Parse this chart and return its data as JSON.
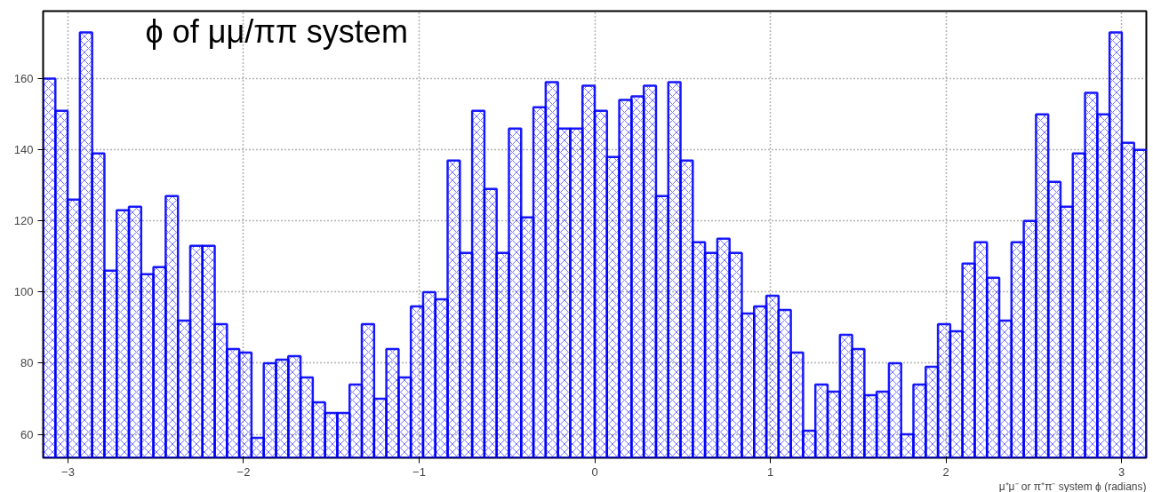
{
  "chart_data": {
    "type": "histogram",
    "title": "ϕ of μμ/ππ system",
    "xlabel": "μ⁺μ⁻ or π⁺π⁻ system ϕ (radians)",
    "color": "#0000ff",
    "bins": [
      -3.1416,
      -3.0718,
      -3.002,
      -2.9322,
      -2.8623,
      -2.7925,
      -2.7227,
      -2.6529,
      -2.5831,
      -2.5133,
      -2.4435,
      -2.3736,
      -2.3038,
      -2.234,
      -2.1642,
      -2.0944,
      -2.0246,
      -1.9548,
      -1.885,
      -1.8151,
      -1.7453,
      -1.6755,
      -1.6057,
      -1.5359,
      -1.4661,
      -1.3963,
      -1.3265,
      -1.2566,
      -1.1868,
      -1.117,
      -1.0472,
      -0.9774,
      -0.9076,
      -0.8378,
      -0.7679,
      -0.6981,
      -0.6283,
      -0.5585,
      -0.4887,
      -0.4189,
      -0.3491,
      -0.2793,
      -0.2094,
      -0.1396,
      -0.0698,
      0,
      0.0698,
      0.1396,
      0.2094,
      0.2793,
      0.3491,
      0.4189,
      0.4887,
      0.5585,
      0.6283,
      0.6981,
      0.7679,
      0.8378,
      0.9076,
      0.9774,
      1.0472,
      1.117,
      1.1868,
      1.2566,
      1.3265,
      1.3963,
      1.4661,
      1.5359,
      1.6057,
      1.6755,
      1.7453,
      1.8151,
      1.885,
      1.9548,
      2.0246,
      2.0944,
      2.1642,
      2.234,
      2.3038,
      2.3736,
      2.4435,
      2.5133,
      2.5831,
      2.6529,
      2.7227,
      2.7925,
      2.8623,
      2.9322,
      3.002,
      3.0718,
      3.1416
    ],
    "values": [
      160,
      151,
      126,
      173,
      139,
      106,
      123,
      124,
      105,
      107,
      127,
      92,
      113,
      113,
      91,
      84,
      83,
      59,
      80,
      81,
      82,
      76,
      69,
      66,
      66,
      74,
      91,
      70,
      84,
      76,
      96,
      100,
      98,
      137,
      111,
      151,
      129,
      111,
      146,
      121,
      152,
      159,
      146,
      146,
      158,
      151,
      138,
      154,
      155,
      158,
      127,
      159,
      137,
      114,
      111,
      115,
      111,
      94,
      96,
      99,
      95,
      83,
      61,
      74,
      72,
      88,
      84,
      71,
      72,
      80,
      60,
      74,
      79,
      91,
      89,
      108,
      114,
      104,
      92,
      114,
      120,
      150,
      131,
      124,
      139,
      156,
      150,
      173,
      142,
      140
    ],
    "xlim": [
      -3.1416,
      3.1416
    ],
    "ylim": [
      53.4,
      179
    ],
    "xticks": [
      -3,
      -2,
      -1,
      0,
      1,
      2,
      3
    ],
    "yticks": [
      60,
      80,
      100,
      120,
      140,
      160
    ],
    "grid": true
  }
}
